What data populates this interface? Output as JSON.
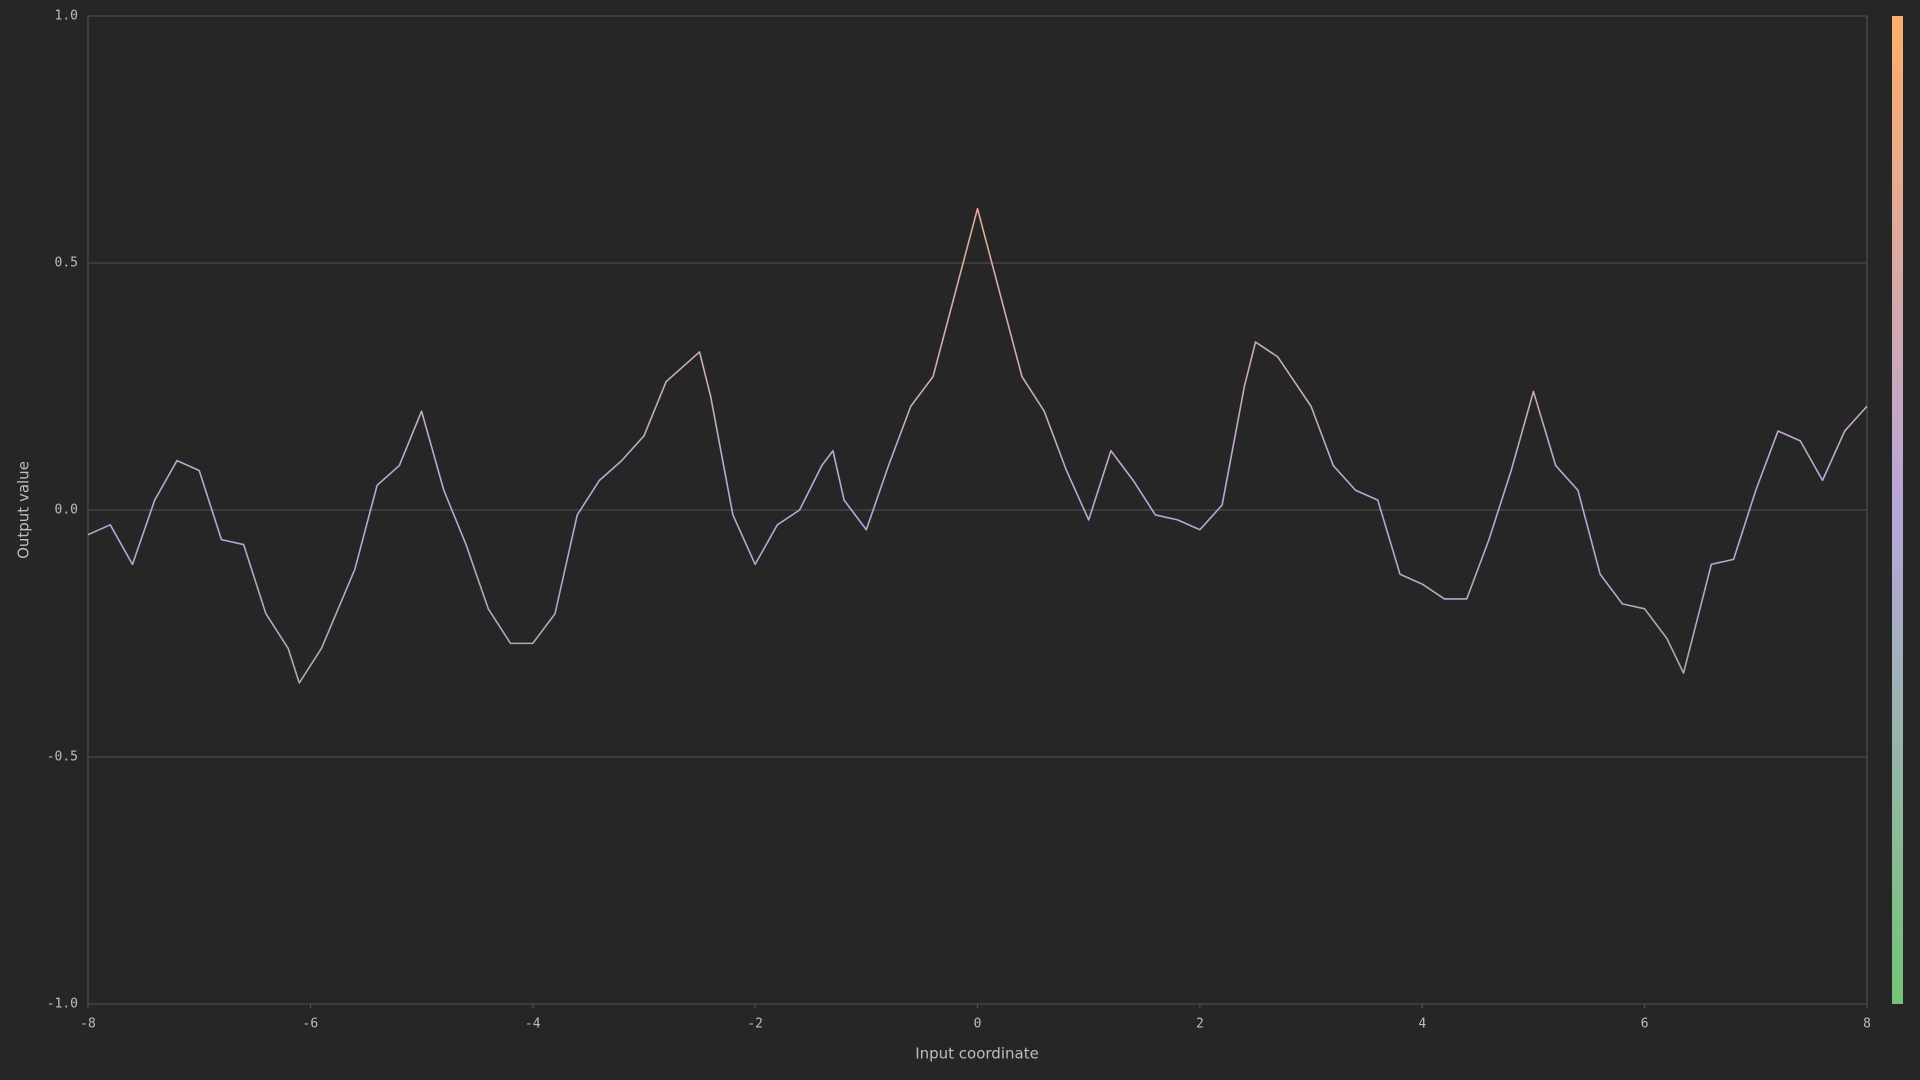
{
  "chart_data": {
    "type": "line",
    "xlabel": "Input coordinate",
    "ylabel": "Output value",
    "x": [
      -8,
      -7.8,
      -7.6,
      -7.4,
      -7.2,
      -7.0,
      -6.8,
      -6.6,
      -6.4,
      -6.2,
      -6.1,
      -5.9,
      -5.6,
      -5.4,
      -5.2,
      -5.0,
      -4.8,
      -4.6,
      -4.4,
      -4.2,
      -4.0,
      -3.8,
      -3.6,
      -3.4,
      -3.2,
      -3.0,
      -2.8,
      -2.6,
      -2.5,
      -2.4,
      -2.2,
      -2.0,
      -1.8,
      -1.6,
      -1.4,
      -1.3,
      -1.2,
      -1.0,
      -0.8,
      -0.6,
      -0.4,
      -0.2,
      0,
      0.2,
      0.4,
      0.6,
      0.8,
      1.0,
      1.2,
      1.4,
      1.6,
      1.8,
      2.0,
      2.2,
      2.4,
      2.5,
      2.7,
      3.0,
      3.2,
      3.4,
      3.6,
      3.8,
      4.0,
      4.2,
      4.4,
      4.6,
      4.8,
      5.0,
      5.2,
      5.4,
      5.6,
      5.8,
      6.0,
      6.2,
      6.35,
      6.6,
      6.8,
      7.0,
      7.2,
      7.4,
      7.6,
      7.8,
      8.0
    ],
    "values": [
      -0.05,
      -0.03,
      -0.11,
      0.02,
      0.1,
      0.08,
      -0.06,
      -0.07,
      -0.21,
      -0.28,
      -0.35,
      -0.28,
      -0.12,
      0.05,
      0.09,
      0.2,
      0.04,
      -0.07,
      -0.2,
      -0.27,
      -0.27,
      -0.21,
      -0.01,
      0.06,
      0.1,
      0.15,
      0.26,
      0.3,
      0.32,
      0.23,
      -0.01,
      -0.11,
      -0.03,
      0.0,
      0.09,
      0.12,
      0.02,
      -0.04,
      0.09,
      0.21,
      0.27,
      0.44,
      0.61,
      0.44,
      0.27,
      0.2,
      0.08,
      -0.02,
      0.12,
      0.06,
      -0.01,
      -0.02,
      -0.04,
      0.01,
      0.25,
      0.34,
      0.31,
      0.21,
      0.09,
      0.04,
      0.02,
      -0.13,
      -0.15,
      -0.18,
      -0.18,
      -0.06,
      0.08,
      0.24,
      0.09,
      0.04,
      -0.13,
      -0.19,
      -0.2,
      -0.26,
      -0.33,
      -0.11,
      -0.1,
      0.04,
      0.16,
      0.14,
      0.06,
      0.16,
      0.21
    ],
    "colormap": [
      "#74c476",
      "#b7a6da",
      "#fdae6b"
    ],
    "xlim": [
      -8,
      8
    ],
    "xticks": [
      -8,
      -6,
      -4,
      -2,
      0,
      2,
      4,
      6,
      8
    ],
    "ylim": [
      -1,
      1
    ],
    "yticks": [
      {
        "value": -1,
        "label": "-1.0"
      },
      -0.5,
      {
        "value": 0,
        "label": "0.0"
      },
      0.5,
      {
        "value": 1,
        "label": "1.0"
      }
    ],
    "grid": true,
    "colorbar": true
  }
}
